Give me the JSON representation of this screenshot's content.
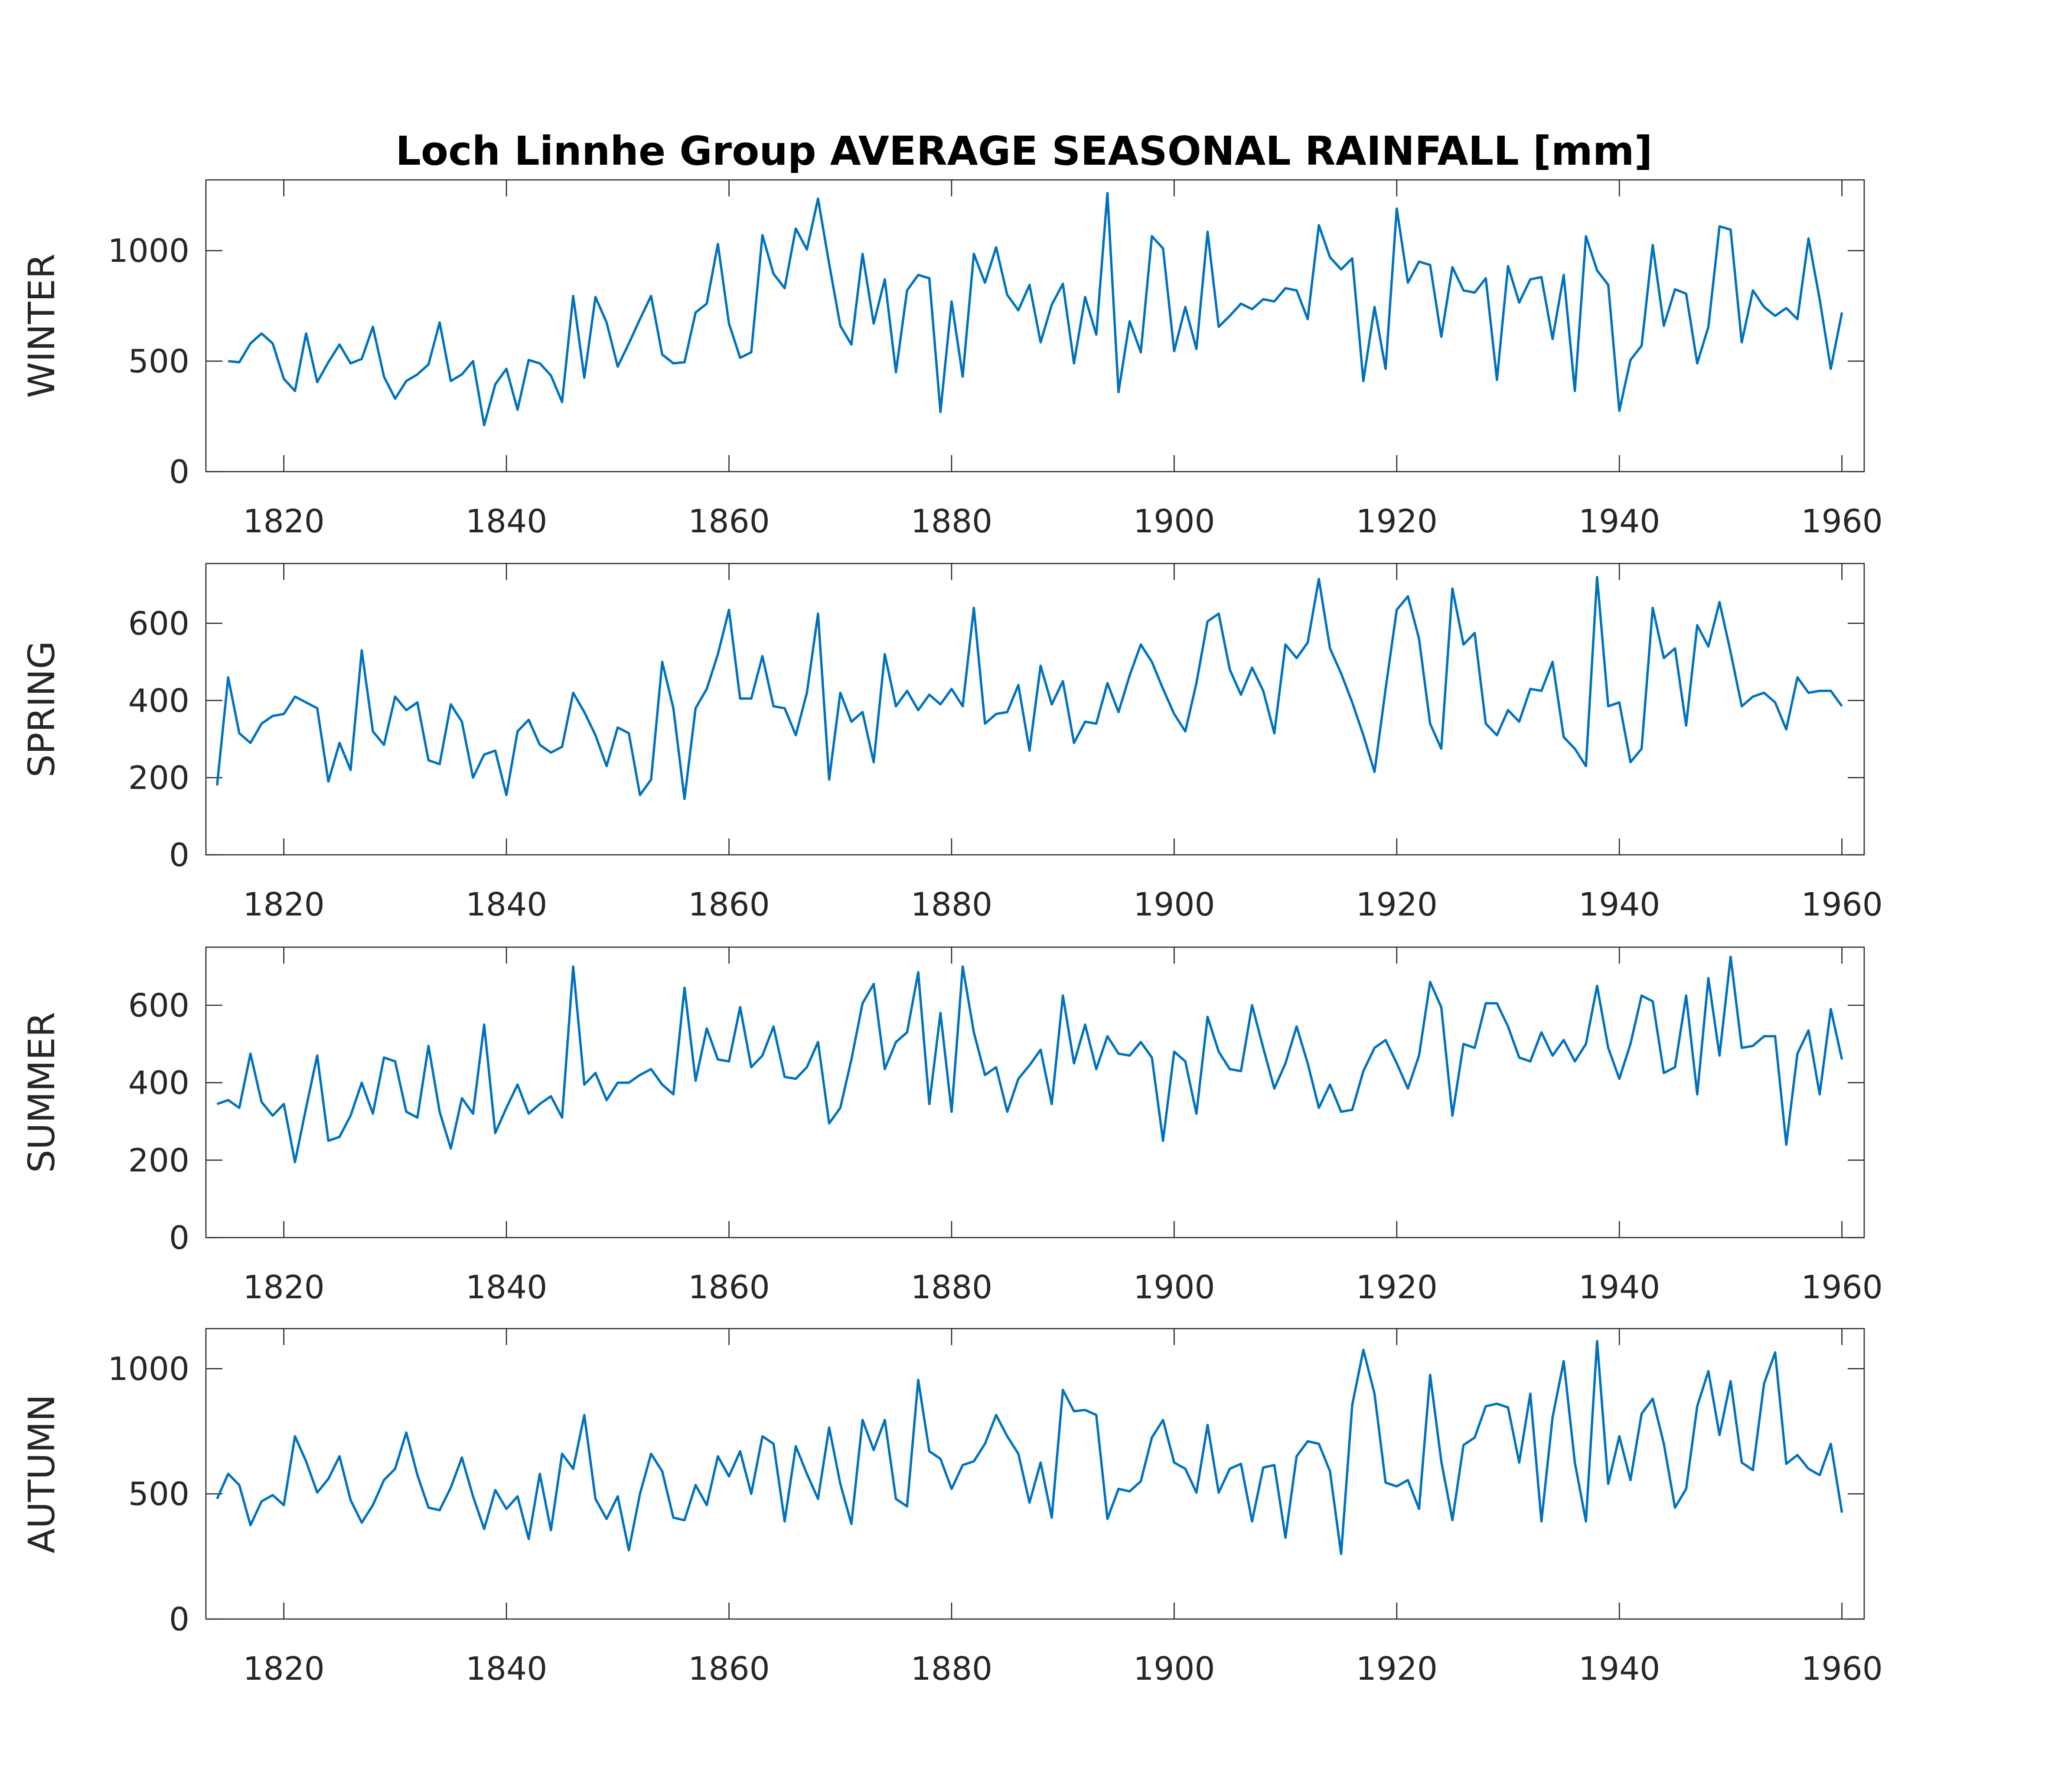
{
  "chart_data": {
    "type": "line",
    "title": "Loch Linnhe Group AVERAGE SEASONAL RAINFALL [mm]",
    "line_color": "#0072BD",
    "grid": false,
    "x_start_year": 1814,
    "xlim": [
      1813,
      1962
    ],
    "xticks": [
      1820,
      1840,
      1860,
      1880,
      1900,
      1920,
      1940,
      1960
    ],
    "xtick_labels": [
      "1820",
      "1840",
      "1860",
      "1880",
      "1900",
      "1920",
      "1940",
      "1960"
    ],
    "panels": [
      {
        "name": "winter",
        "ylabel": "WINTER",
        "ylim": [
          0,
          1320
        ],
        "yticks": [
          0,
          500,
          1000
        ],
        "ytick_labels": [
          "0",
          "500",
          "1000"
        ],
        "values": [
          null,
          500,
          495,
          580,
          625,
          580,
          420,
          365,
          625,
          405,
          495,
          575,
          490,
          510,
          655,
          430,
          330,
          410,
          440,
          485,
          675,
          410,
          440,
          500,
          210,
          395,
          465,
          280,
          505,
          490,
          435,
          315,
          795,
          425,
          790,
          675,
          475,
          580,
          690,
          795,
          530,
          490,
          495,
          720,
          760,
          1030,
          670,
          515,
          540,
          1070,
          895,
          830,
          1100,
          1005,
          1235,
          940,
          660,
          575,
          985,
          670,
          870,
          450,
          820,
          890,
          875,
          270,
          770,
          430,
          985,
          855,
          1015,
          800,
          730,
          845,
          585,
          755,
          850,
          490,
          790,
          620,
          1260,
          360,
          680,
          540,
          1065,
          1010,
          545,
          745,
          555,
          1085,
          655,
          705,
          760,
          735,
          780,
          770,
          830,
          820,
          690,
          1115,
          970,
          915,
          965,
          410,
          745,
          465,
          1190,
          855,
          950,
          935,
          610,
          925,
          820,
          810,
          875,
          415,
          930,
          765,
          870,
          880,
          600,
          890,
          365,
          1065,
          910,
          845,
          275,
          505,
          570,
          1025,
          660,
          825,
          805,
          490,
          655,
          1110,
          1095,
          585,
          820,
          745,
          705,
          740,
          690,
          1055,
          780,
          465,
          720
        ]
      },
      {
        "name": "spring",
        "ylabel": "SPRING",
        "ylim": [
          0,
          755
        ],
        "yticks": [
          0,
          200,
          400,
          600
        ],
        "ytick_labels": [
          "0",
          "200",
          "400",
          "600"
        ],
        "values": [
          180,
          460,
          315,
          290,
          340,
          360,
          365,
          410,
          395,
          380,
          190,
          290,
          220,
          530,
          320,
          285,
          410,
          375,
          395,
          245,
          235,
          390,
          345,
          200,
          260,
          270,
          155,
          320,
          350,
          285,
          265,
          280,
          420,
          370,
          310,
          230,
          330,
          315,
          155,
          195,
          500,
          380,
          145,
          380,
          430,
          520,
          635,
          405,
          405,
          515,
          385,
          380,
          310,
          420,
          625,
          195,
          420,
          345,
          370,
          240,
          520,
          385,
          425,
          375,
          415,
          390,
          430,
          385,
          640,
          340,
          365,
          370,
          440,
          270,
          490,
          390,
          450,
          290,
          345,
          340,
          445,
          370,
          465,
          545,
          500,
          430,
          365,
          320,
          445,
          605,
          625,
          480,
          415,
          485,
          425,
          315,
          545,
          510,
          550,
          715,
          535,
          470,
          395,
          310,
          215,
          430,
          635,
          670,
          560,
          340,
          275,
          690,
          545,
          575,
          340,
          310,
          375,
          345,
          430,
          425,
          500,
          305,
          275,
          230,
          720,
          385,
          395,
          240,
          275,
          640,
          510,
          535,
          335,
          595,
          540,
          655,
          525,
          385,
          410,
          420,
          395,
          325,
          460,
          420,
          425,
          425,
          385
        ]
      },
      {
        "name": "summer",
        "ylabel": "SUMMER",
        "ylim": [
          0,
          750
        ],
        "yticks": [
          0,
          200,
          400,
          600
        ],
        "ytick_labels": [
          "0",
          "200",
          "400",
          "600"
        ],
        "values": [
          345,
          355,
          335,
          475,
          350,
          315,
          345,
          195,
          335,
          470,
          250,
          260,
          315,
          400,
          320,
          465,
          455,
          325,
          310,
          495,
          325,
          230,
          360,
          320,
          550,
          270,
          335,
          395,
          320,
          345,
          365,
          310,
          700,
          395,
          425,
          355,
          400,
          400,
          420,
          435,
          395,
          370,
          645,
          405,
          540,
          460,
          455,
          595,
          440,
          470,
          545,
          415,
          410,
          440,
          505,
          295,
          335,
          460,
          605,
          655,
          435,
          505,
          530,
          685,
          345,
          580,
          325,
          700,
          530,
          420,
          440,
          325,
          410,
          445,
          485,
          345,
          625,
          450,
          550,
          435,
          520,
          475,
          470,
          505,
          465,
          250,
          480,
          455,
          320,
          570,
          480,
          435,
          430,
          600,
          490,
          385,
          450,
          545,
          450,
          335,
          395,
          325,
          330,
          430,
          490,
          510,
          450,
          385,
          470,
          660,
          595,
          315,
          500,
          490,
          605,
          605,
          545,
          465,
          455,
          530,
          470,
          510,
          455,
          500,
          650,
          490,
          410,
          500,
          625,
          610,
          425,
          440,
          625,
          370,
          670,
          470,
          725,
          490,
          495,
          520,
          520,
          240,
          475,
          535,
          370,
          590,
          460
        ]
      },
      {
        "name": "autumn",
        "ylabel": "AUTUMN",
        "ylim": [
          0,
          1160
        ],
        "yticks": [
          0,
          500,
          1000
        ],
        "ytick_labels": [
          "0",
          "500",
          "1000"
        ],
        "values": [
          480,
          580,
          535,
          375,
          470,
          495,
          455,
          730,
          630,
          505,
          560,
          650,
          475,
          385,
          455,
          555,
          600,
          745,
          575,
          445,
          435,
          525,
          645,
          490,
          360,
          515,
          440,
          490,
          320,
          580,
          355,
          660,
          600,
          815,
          480,
          400,
          490,
          275,
          500,
          660,
          590,
          405,
          395,
          535,
          455,
          650,
          570,
          670,
          500,
          730,
          700,
          390,
          690,
          580,
          480,
          765,
          540,
          380,
          795,
          675,
          795,
          480,
          450,
          955,
          670,
          640,
          520,
          615,
          630,
          700,
          815,
          730,
          660,
          465,
          625,
          405,
          915,
          830,
          835,
          815,
          400,
          520,
          510,
          550,
          725,
          795,
          625,
          600,
          505,
          775,
          505,
          600,
          620,
          390,
          605,
          615,
          325,
          650,
          710,
          700,
          590,
          260,
          855,
          1075,
          900,
          545,
          530,
          555,
          440,
          975,
          630,
          395,
          695,
          725,
          850,
          860,
          845,
          625,
          900,
          390,
          805,
          1030,
          625,
          390,
          1110,
          540,
          730,
          555,
          820,
          880,
          700,
          445,
          520,
          850,
          990,
          735,
          950,
          625,
          595,
          940,
          1065,
          620,
          655,
          600,
          575,
          700,
          425
        ]
      }
    ]
  }
}
